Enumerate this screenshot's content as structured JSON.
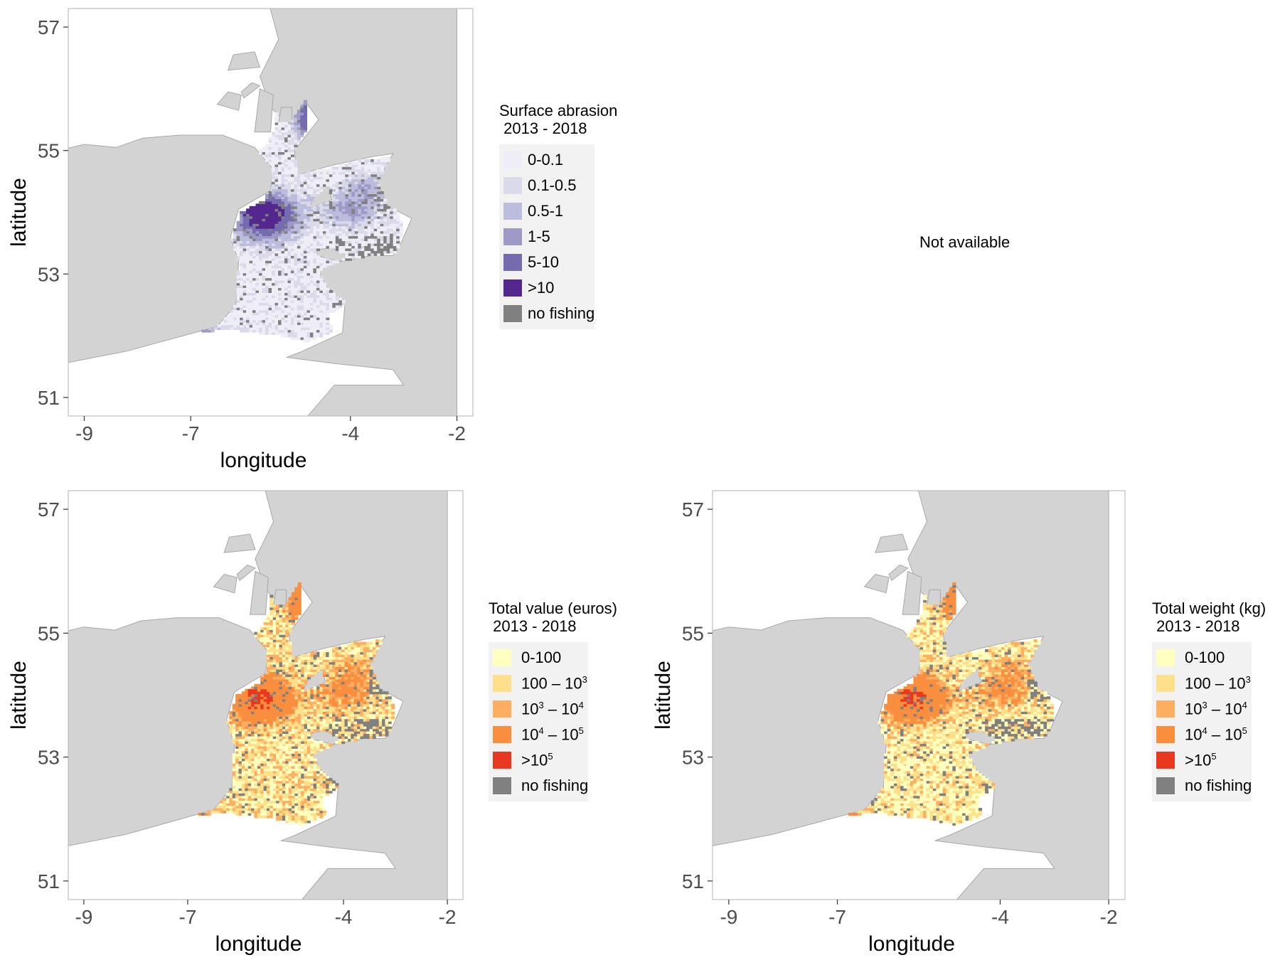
{
  "x_axis_ticks": [
    "-9",
    "-7",
    "-4",
    "-2"
  ],
  "y_axis_ticks": [
    "51",
    "53",
    "55",
    "57"
  ],
  "x_axis_title": "longitude",
  "y_axis_title": "latitude",
  "colors": {
    "land": "#d3d3d3",
    "land_border": "#a8a8a8",
    "sea": "#ffffff",
    "no_fishing": "#808080",
    "abrasion": [
      "#efedf5",
      "#dadaeb",
      "#bcbddc",
      "#9e9ac8",
      "#756bb1",
      "#54278f"
    ],
    "landings": [
      "#ffffbf",
      "#fee08b",
      "#fdae61",
      "#f98e3e",
      "#e8381f"
    ]
  },
  "panels": {
    "abrasion": {
      "legend_title": "Surface abrasion\n 2013 - 2018",
      "legend_items": [
        {
          "label": "0-0.1",
          "color": "#efedf5"
        },
        {
          "label": "0.1-0.5",
          "color": "#dadaeb"
        },
        {
          "label": "0.5-1",
          "color": "#bcbddc"
        },
        {
          "label": "1-5",
          "color": "#9e9ac8"
        },
        {
          "label": "5-10",
          "color": "#756bb1"
        },
        {
          "label": ">10",
          "color": "#54278f"
        },
        {
          "label": "no fishing",
          "color": "#808080"
        }
      ]
    },
    "not_available": {
      "text": "Not available"
    },
    "value": {
      "legend_title": "Total value (euros)\n 2013 - 2018",
      "legend_items": [
        {
          "base": "0-100",
          "sup": "",
          "mid": "",
          "sup2": "",
          "color": "#ffffbf"
        },
        {
          "base": "100 – 10",
          "sup": "3",
          "mid": "",
          "sup2": "",
          "color": "#fee08b"
        },
        {
          "base": "10",
          "sup": "3",
          "mid": " – 10",
          "sup2": "4",
          "color": "#fdae61"
        },
        {
          "base": "10",
          "sup": "4",
          "mid": " – 10",
          "sup2": "5",
          "color": "#f98e3e"
        },
        {
          "base": ">10",
          "sup": "5",
          "mid": "",
          "sup2": "",
          "color": "#e8381f"
        },
        {
          "base": "no fishing",
          "sup": "",
          "mid": "",
          "sup2": "",
          "color": "#808080"
        }
      ]
    },
    "weight": {
      "legend_title": "Total weight (kg)\n 2013 - 2018",
      "legend_items": [
        {
          "base": "0-100",
          "sup": "",
          "mid": "",
          "sup2": "",
          "color": "#ffffbf"
        },
        {
          "base": "100 – 10",
          "sup": "3",
          "mid": "",
          "sup2": "",
          "color": "#fee08b"
        },
        {
          "base": "10",
          "sup": "3",
          "mid": " – 10",
          "sup2": "4",
          "color": "#fdae61"
        },
        {
          "base": "10",
          "sup": "4",
          "mid": " – 10",
          "sup2": "5",
          "color": "#f98e3e"
        },
        {
          "base": ">10",
          "sup": "5",
          "mid": "",
          "sup2": "",
          "color": "#e8381f"
        },
        {
          "base": "no fishing",
          "sup": "",
          "mid": "",
          "sup2": "",
          "color": "#808080"
        }
      ]
    }
  }
}
